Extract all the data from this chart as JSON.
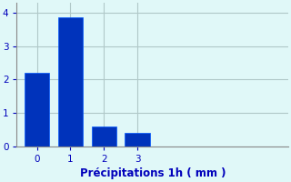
{
  "categories": [
    0,
    1,
    2,
    3
  ],
  "values": [
    2.2,
    3.85,
    0.6,
    0.4
  ],
  "bar_color": "#0033bb",
  "bar_edge_color": "#0055ff",
  "background_color": "#e0f8f8",
  "xlabel": "Précipitations 1h ( mm )",
  "xlabel_color": "#0000bb",
  "ylim": [
    0,
    4.3
  ],
  "xlim": [
    -0.6,
    7.5
  ],
  "yticks": [
    0,
    1,
    2,
    3,
    4
  ],
  "xticks": [
    0,
    1,
    2,
    3
  ],
  "grid_color": "#b0c8c8",
  "axis_color": "#888888",
  "tick_color": "#0000bb",
  "bar_width": 0.75,
  "xlabel_fontsize": 8.5,
  "tick_fontsize": 7.5
}
